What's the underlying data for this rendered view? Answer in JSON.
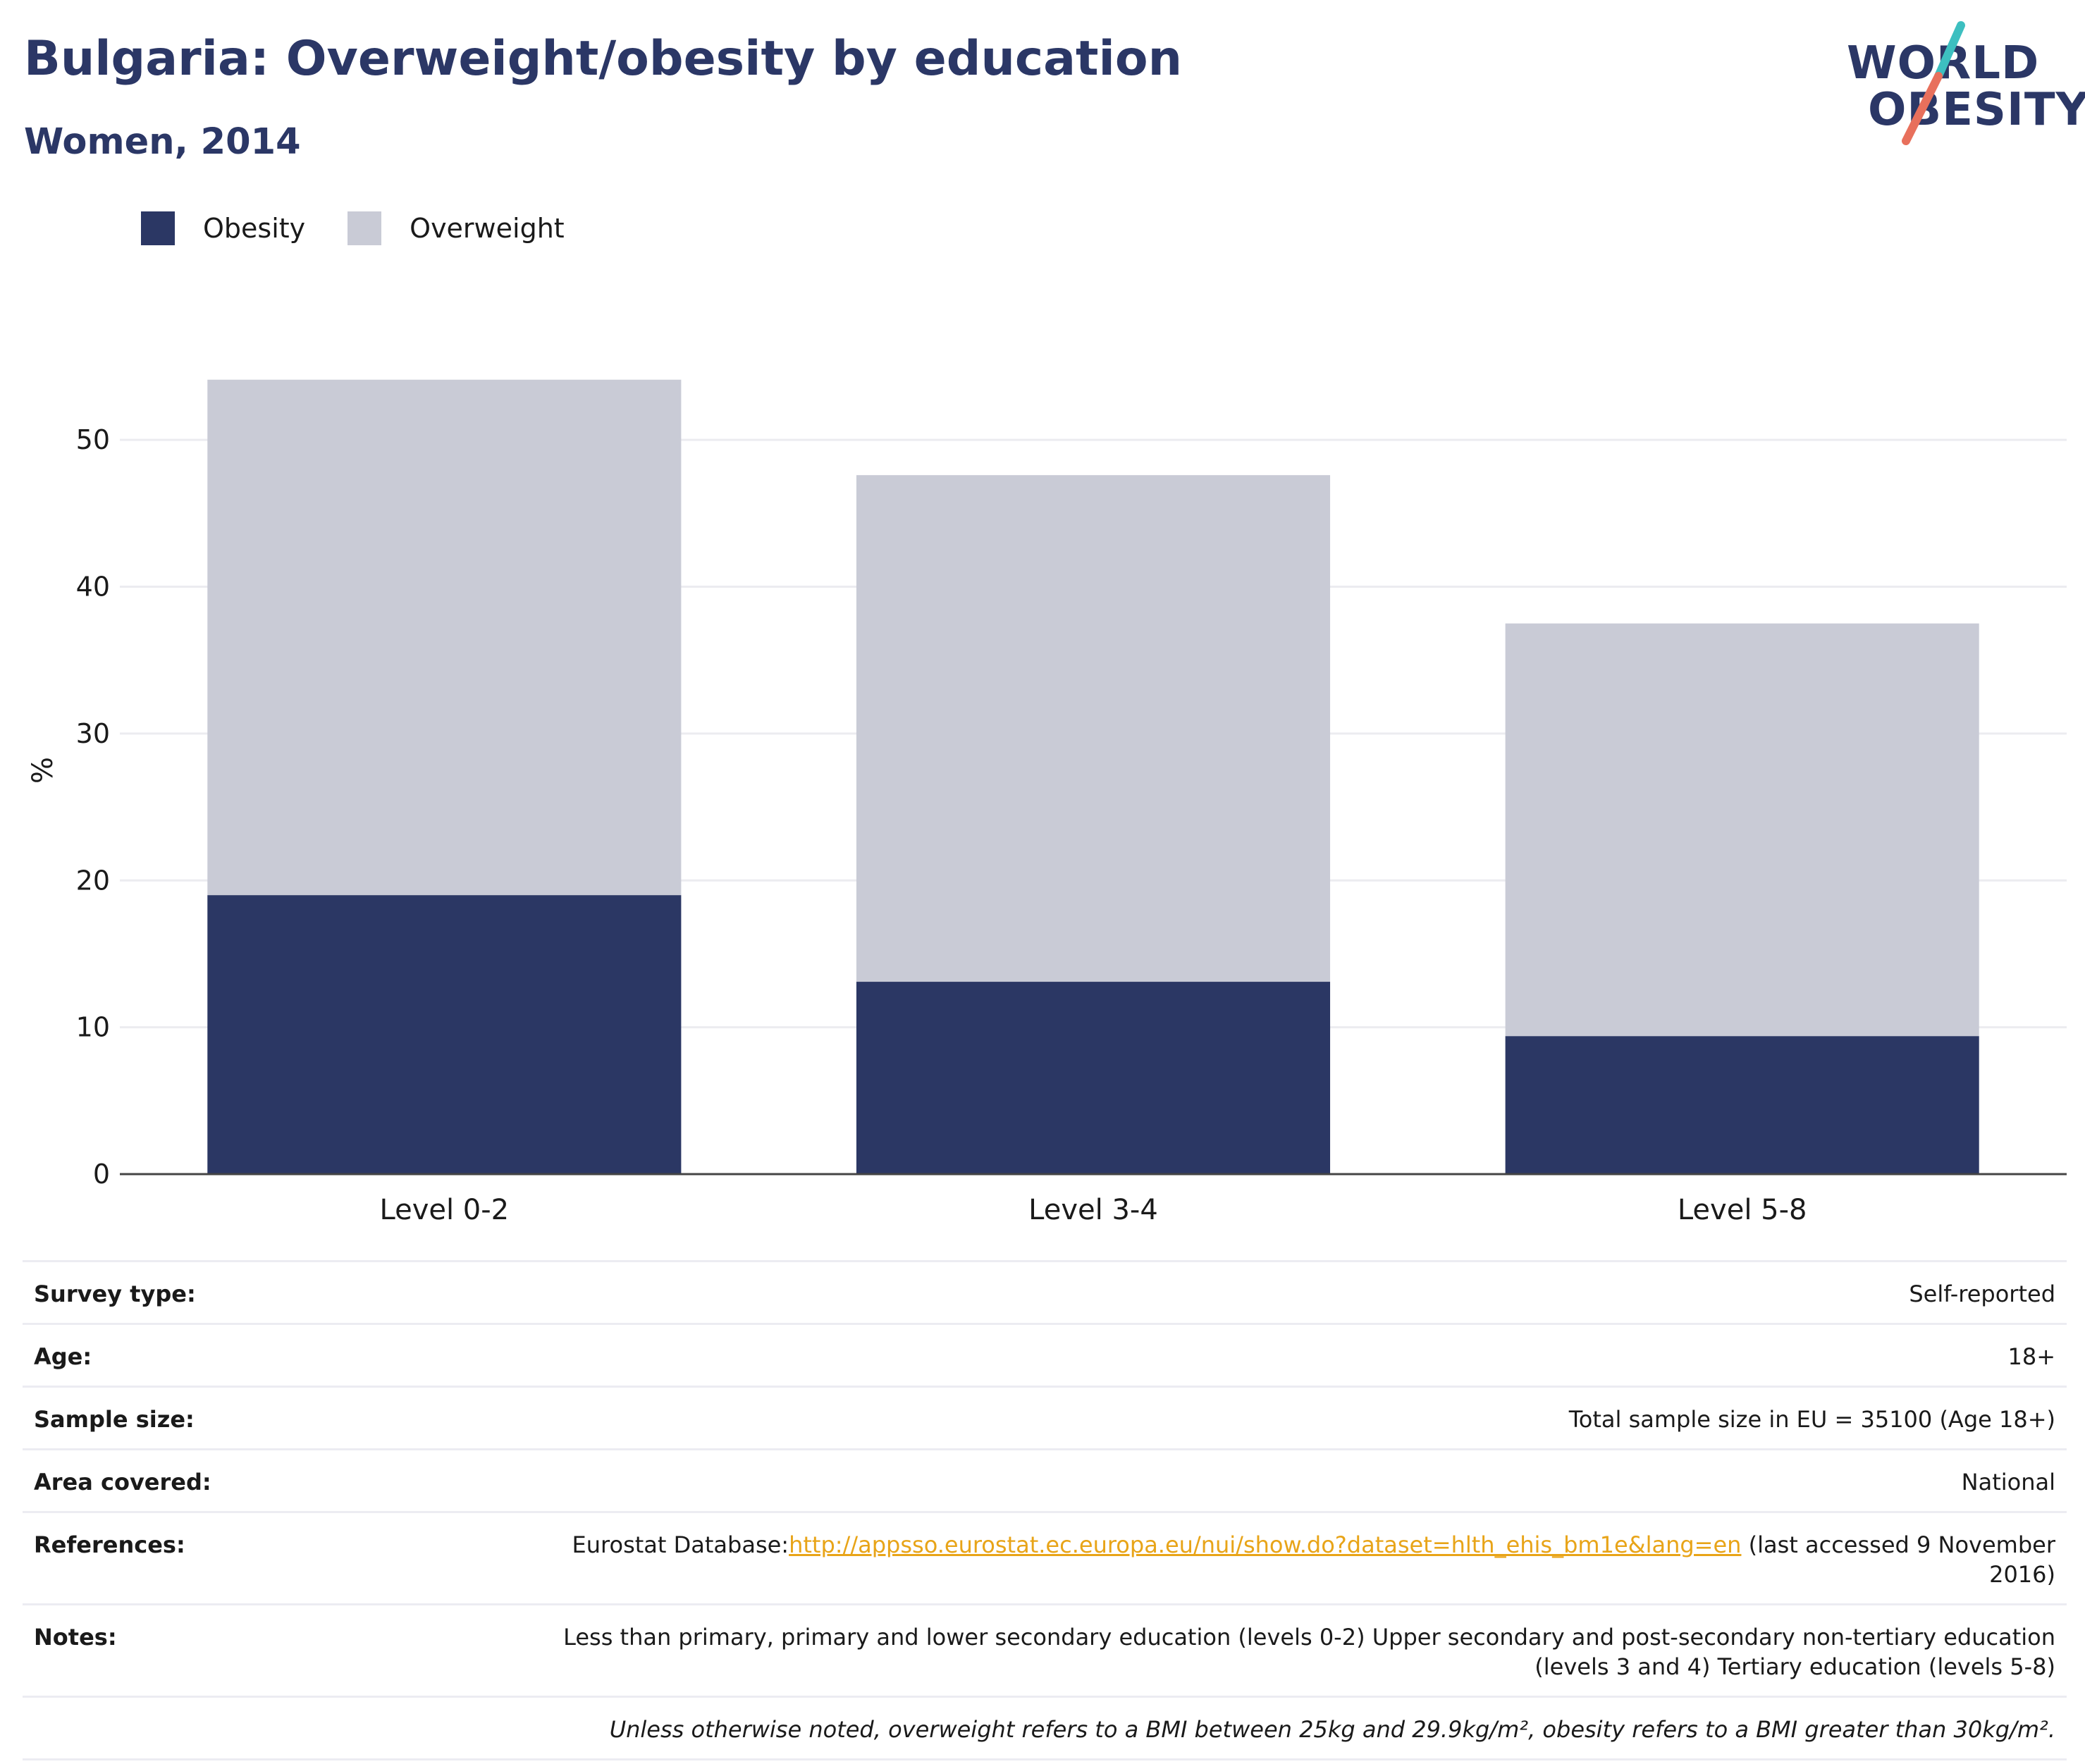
{
  "title": "Bulgaria: Overweight/obesity by education",
  "subtitle": "Women, 2014",
  "logo": {
    "line1": "WORLD",
    "line2": "OBESITY",
    "accent_teal": "#3dbfc0",
    "accent_coral": "#e8705c"
  },
  "colors": {
    "obesity": "#2b3764",
    "overweight": "#c9cbd6",
    "title": "#2b3766",
    "link": "#e8a418"
  },
  "legend": [
    {
      "label": "Obesity",
      "color": "#2b3764"
    },
    {
      "label": "Overweight",
      "color": "#c9cbd6"
    }
  ],
  "chart_data": {
    "type": "bar",
    "stacked": true,
    "categories": [
      "Level 0-2",
      "Level 3-4",
      "Level 5-8"
    ],
    "series": [
      {
        "name": "Obesity",
        "values": [
          19.0,
          13.1,
          9.4
        ]
      },
      {
        "name": "Overweight",
        "values": [
          35.1,
          34.5,
          28.1
        ]
      }
    ],
    "ylabel": "%",
    "ylim": [
      0,
      55
    ],
    "yticks": [
      0,
      10,
      20,
      30,
      40,
      50
    ],
    "grid": true,
    "legend_position": "top-left"
  },
  "info": {
    "survey_type": {
      "label": "Survey type:",
      "value": "Self-reported"
    },
    "age": {
      "label": "Age:",
      "value": "18+"
    },
    "sample_size": {
      "label": "Sample size:",
      "value": "Total sample size in EU = 35100 (Age 18+)"
    },
    "area": {
      "label": "Area covered:",
      "value": "National"
    },
    "references": {
      "label": "References:",
      "prefix": "Eurostat Database:",
      "link": "http://appsso.eurostat.ec.europa.eu/nui/show.do?dataset=hlth_ehis_bm1e&lang=en",
      "suffix": " (last accessed 9 November 2016)"
    },
    "notes": {
      "label": "Notes:",
      "value": "Less than primary, primary and lower secondary education (levels 0-2) Upper secondary and post-secondary non-tertiary education (levels 3 and 4) Tertiary education (levels 5-8)"
    },
    "footnote": "Unless otherwise noted, overweight refers to a BMI between 25kg and 29.9kg/m², obesity refers to a BMI greater than 30kg/m²."
  }
}
